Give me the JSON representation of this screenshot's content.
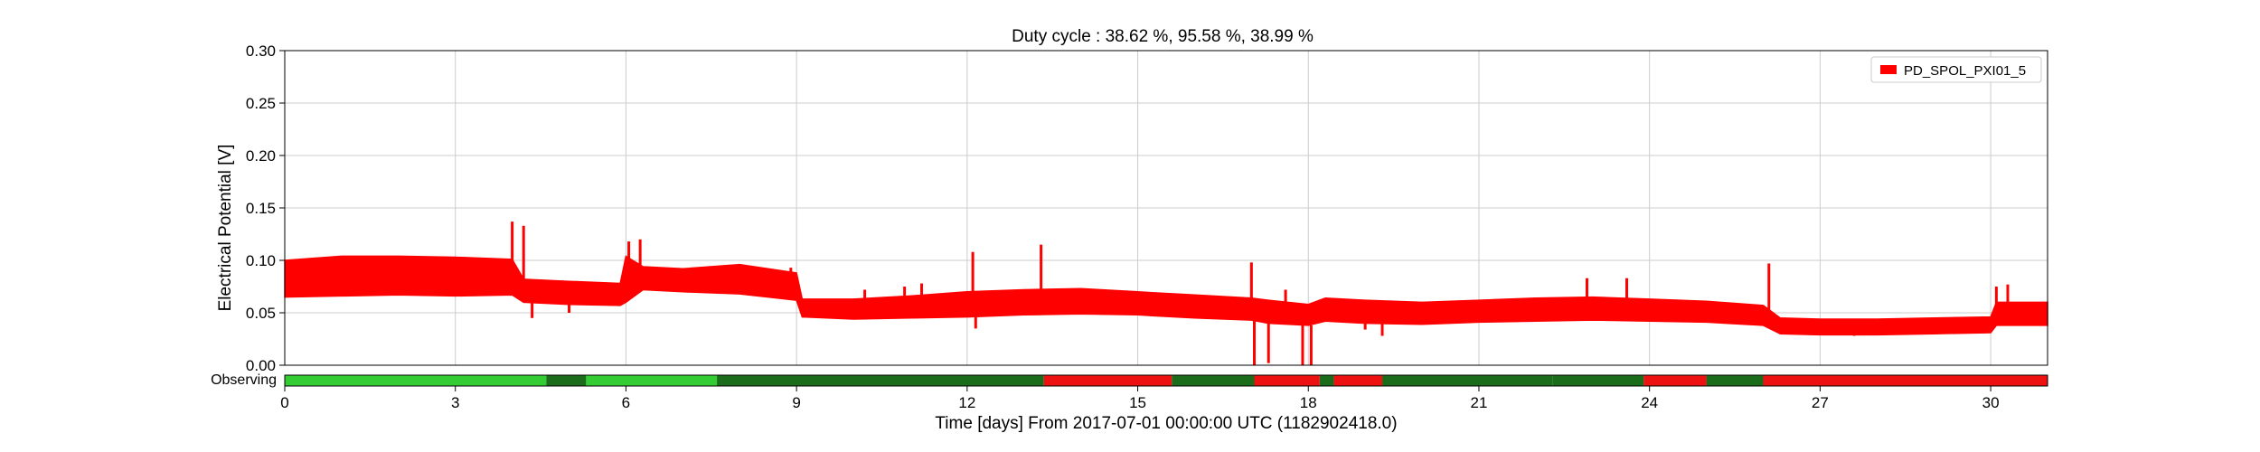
{
  "chart_data": {
    "type": "line",
    "title": "Duty cycle : 38.62 %, 95.58 %, 38.99 %",
    "xlabel": "Time [days] From 2017-07-01 00:00:00 UTC (1182902418.0)",
    "ylabel": "Electrical Potential [V]",
    "xlim": [
      0,
      31
    ],
    "ylim": [
      0,
      0.3
    ],
    "grid": true,
    "legend_position": "top-right",
    "x_ticks": [
      0,
      3,
      6,
      9,
      12,
      15,
      18,
      21,
      24,
      27,
      30
    ],
    "y_ticks": [
      "0.00",
      "0.05",
      "0.10",
      "0.15",
      "0.20",
      "0.25",
      "0.30"
    ],
    "series": [
      {
        "name": "PD_SPOL_PXI01_5",
        "color": "#ff0000",
        "band_low": [
          [
            0,
            0.065
          ],
          [
            1,
            0.066
          ],
          [
            2,
            0.067
          ],
          [
            3,
            0.066
          ],
          [
            4,
            0.067
          ],
          [
            4.2,
            0.06
          ],
          [
            5,
            0.058
          ],
          [
            5.9,
            0.057
          ],
          [
            6,
            0.06
          ],
          [
            6.3,
            0.072
          ],
          [
            7,
            0.07
          ],
          [
            8,
            0.068
          ],
          [
            9,
            0.062
          ],
          [
            9.1,
            0.046
          ],
          [
            10,
            0.044
          ],
          [
            11,
            0.045
          ],
          [
            12,
            0.046
          ],
          [
            13,
            0.048
          ],
          [
            14,
            0.049
          ],
          [
            15,
            0.048
          ],
          [
            16,
            0.045
          ],
          [
            17,
            0.043
          ],
          [
            17.3,
            0.04
          ],
          [
            18,
            0.038
          ],
          [
            18.3,
            0.042
          ],
          [
            19,
            0.04
          ],
          [
            20,
            0.039
          ],
          [
            21,
            0.041
          ],
          [
            22,
            0.042
          ],
          [
            23,
            0.043
          ],
          [
            24,
            0.042
          ],
          [
            25,
            0.041
          ],
          [
            26,
            0.038
          ],
          [
            26.3,
            0.03
          ],
          [
            27,
            0.029
          ],
          [
            28,
            0.029
          ],
          [
            29,
            0.03
          ],
          [
            30,
            0.031
          ],
          [
            30.1,
            0.038
          ],
          [
            31,
            0.038
          ]
        ],
        "band_high": [
          [
            0,
            0.1
          ],
          [
            1,
            0.104
          ],
          [
            2,
            0.104
          ],
          [
            3,
            0.103
          ],
          [
            4,
            0.101
          ],
          [
            4.2,
            0.082
          ],
          [
            5,
            0.08
          ],
          [
            5.9,
            0.078
          ],
          [
            6,
            0.104
          ],
          [
            6.3,
            0.094
          ],
          [
            7,
            0.092
          ],
          [
            8,
            0.096
          ],
          [
            9,
            0.088
          ],
          [
            9.1,
            0.063
          ],
          [
            10,
            0.063
          ],
          [
            11,
            0.066
          ],
          [
            12,
            0.07
          ],
          [
            13,
            0.072
          ],
          [
            14,
            0.073
          ],
          [
            15,
            0.07
          ],
          [
            16,
            0.067
          ],
          [
            17,
            0.064
          ],
          [
            17.3,
            0.062
          ],
          [
            18,
            0.058
          ],
          [
            18.3,
            0.064
          ],
          [
            19,
            0.062
          ],
          [
            20,
            0.06
          ],
          [
            21,
            0.062
          ],
          [
            22,
            0.064
          ],
          [
            23,
            0.065
          ],
          [
            24,
            0.063
          ],
          [
            25,
            0.061
          ],
          [
            26,
            0.057
          ],
          [
            26.3,
            0.045
          ],
          [
            27,
            0.044
          ],
          [
            28,
            0.044
          ],
          [
            29,
            0.045
          ],
          [
            30,
            0.046
          ],
          [
            30.1,
            0.06
          ],
          [
            31,
            0.06
          ]
        ],
        "spikes": [
          [
            4.0,
            0.137
          ],
          [
            4.2,
            0.133
          ],
          [
            4.35,
            0.045
          ],
          [
            5.0,
            0.05
          ],
          [
            6.05,
            0.118
          ],
          [
            6.25,
            0.12
          ],
          [
            8.9,
            0.093
          ],
          [
            10.2,
            0.072
          ],
          [
            10.9,
            0.075
          ],
          [
            11.2,
            0.078
          ],
          [
            12.1,
            0.108
          ],
          [
            12.15,
            0.035
          ],
          [
            13.3,
            0.115
          ],
          [
            17.0,
            0.098
          ],
          [
            17.05,
            0.0
          ],
          [
            17.3,
            0.002
          ],
          [
            17.6,
            0.072
          ],
          [
            17.9,
            0.0
          ],
          [
            18.05,
            0.0
          ],
          [
            19.0,
            0.034
          ],
          [
            19.3,
            0.028
          ],
          [
            22.9,
            0.083
          ],
          [
            23.6,
            0.083
          ],
          [
            26.1,
            0.097
          ],
          [
            26.2,
            0.033
          ],
          [
            27.6,
            0.028
          ],
          [
            30.1,
            0.075
          ],
          [
            30.3,
            0.077
          ]
        ]
      }
    ],
    "observing": {
      "label": "Observing",
      "segments": [
        {
          "from": 0,
          "to": 4.6,
          "state": "observing-light"
        },
        {
          "from": 4.6,
          "to": 5.3,
          "state": "observing-dark"
        },
        {
          "from": 5.3,
          "to": 7.6,
          "state": "observing-light"
        },
        {
          "from": 7.6,
          "to": 13.35,
          "state": "observing-dark"
        },
        {
          "from": 13.35,
          "to": 15.6,
          "state": "not-observing"
        },
        {
          "from": 15.6,
          "to": 17.05,
          "state": "observing-dark"
        },
        {
          "from": 17.05,
          "to": 18.2,
          "state": "not-observing"
        },
        {
          "from": 18.2,
          "to": 18.45,
          "state": "observing-dark"
        },
        {
          "from": 18.45,
          "to": 19.3,
          "state": "not-observing"
        },
        {
          "from": 19.3,
          "to": 22.3,
          "state": "observing-dark"
        },
        {
          "from": 22.3,
          "to": 23.9,
          "state": "observing-dark"
        },
        {
          "from": 23.9,
          "to": 25.0,
          "state": "not-observing"
        },
        {
          "from": 25.0,
          "to": 26.0,
          "state": "observing-dark"
        },
        {
          "from": 26.0,
          "to": 31,
          "state": "not-observing"
        }
      ],
      "colors": {
        "observing-light": "#33cc33",
        "observing-dark": "#1a6b1a",
        "not-observing": "#ee1111"
      }
    }
  }
}
